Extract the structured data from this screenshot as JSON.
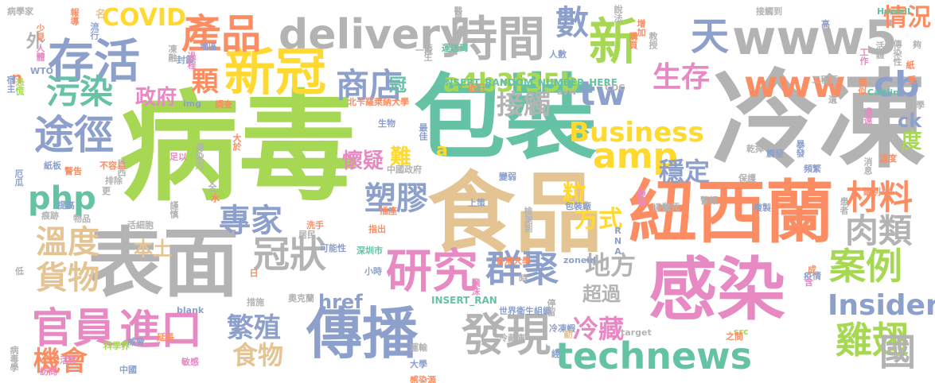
{
  "words": [
    {
      "text": "病毒",
      "color": "#a6d854"
    },
    {
      "text": "冷凍",
      "color": "#b3b3b3"
    },
    {
      "text": "包裝",
      "color": "#66c2a5"
    },
    {
      "text": "食品",
      "color": "#e5c494"
    },
    {
      "text": "表面",
      "color": "#b3b3b3"
    },
    {
      "text": "紐西蘭",
      "color": "#fc8d62"
    },
    {
      "text": "感染",
      "color": "#e78ac3"
    },
    {
      "text": "傳播",
      "color": "#8da0cb"
    },
    {
      "text": "新冠",
      "color": "#ffd92f"
    },
    {
      "text": "時間",
      "color": "#b3b3b3"
    },
    {
      "text": "存活",
      "color": "#8da0cb"
    },
    {
      "text": "www5",
      "color": "#b3b3b3"
    },
    {
      "text": "delivery",
      "color": "#b3b3b3"
    },
    {
      "text": "technews",
      "color": "#66c2a5"
    },
    {
      "text": "研究",
      "color": "#e78ac3"
    },
    {
      "text": "發現",
      "color": "#b3b3b3"
    },
    {
      "text": "新",
      "color": "#a6d854"
    },
    {
      "text": "產品",
      "color": "#fc8d62"
    },
    {
      "text": "進口",
      "color": "#e78ac3"
    },
    {
      "text": "官員",
      "color": "#e78ac3"
    },
    {
      "text": "商店",
      "color": "#8da0cb"
    },
    {
      "text": "www",
      "color": "#fc8d62"
    },
    {
      "text": "雞翅",
      "color": "#a6d854"
    },
    {
      "text": "冠狀",
      "color": "#b3b3b3"
    },
    {
      "text": "群聚",
      "color": "#8da0cb"
    },
    {
      "text": "案例",
      "color": "#a6d854"
    },
    {
      "text": "amp",
      "color": "#ffd92f"
    },
    {
      "text": "數",
      "color": "#8da0cb"
    },
    {
      "text": "天",
      "color": "#8da0cb"
    },
    {
      "text": "國",
      "color": "#b3b3b3"
    },
    {
      "text": "途徑",
      "color": "#8da0cb"
    },
    {
      "text": "污染",
      "color": "#66c2a5"
    },
    {
      "text": "php",
      "color": "#66c2a5"
    },
    {
      "text": "溫度",
      "color": "#e5c494"
    },
    {
      "text": "貨物",
      "color": "#e5c494"
    },
    {
      "text": "材料",
      "color": "#fc8d62"
    },
    {
      "text": "肉類",
      "color": "#b3b3b3"
    },
    {
      "text": "Insider",
      "color": "#8da0cb"
    },
    {
      "text": "專家",
      "color": "#8da0cb"
    },
    {
      "text": "塑膠",
      "color": "#8da0cb"
    },
    {
      "text": "tw",
      "color": "#8da0cb"
    },
    {
      "text": "cb",
      "color": "#8da0cb"
    },
    {
      "text": "生存",
      "color": "#e78ac3"
    },
    {
      "text": "Business",
      "color": "#ffd92f"
    },
    {
      "text": "接觸",
      "color": "#b3b3b3"
    },
    {
      "text": "穩定",
      "color": "#8da0cb"
    },
    {
      "text": "繁殖",
      "color": "#8da0cb"
    },
    {
      "text": "冷藏",
      "color": "#e78ac3"
    },
    {
      "text": "機會",
      "color": "#fc8d62"
    },
    {
      "text": "食物",
      "color": "#e5c494"
    },
    {
      "text": "方式",
      "color": "#ffd92f"
    },
    {
      "text": "地方",
      "color": "#b3b3b3"
    },
    {
      "text": "a4b3f35b",
      "color": "#a6d854"
    },
    {
      "text": "COVID",
      "color": "#ffd92f"
    },
    {
      "text": "情況",
      "color": "#fc8d62"
    },
    {
      "text": "政府",
      "color": "#e78ac3"
    },
    {
      "text": "懷疑",
      "color": "#e78ac3"
    },
    {
      "text": "本土",
      "color": "#e5c494"
    },
    {
      "text": "href",
      "color": "#8da0cb"
    },
    {
      "text": "超過",
      "color": "#b3b3b3"
    },
    {
      "text": "顆",
      "color": "#fc8d62"
    },
    {
      "text": "粒",
      "color": "#ffd92f"
    },
    {
      "text": "難",
      "color": "#ffd92f"
    },
    {
      "text": "冠",
      "color": "#66c2a5"
    },
    {
      "text": "外",
      "color": "#b3b3b3"
    },
    {
      "text": "ck",
      "color": "#8da0cb"
    },
    {
      "text": "度",
      "color": "#a6d854"
    },
    {
      "text": "n",
      "color": "#fc8d62"
    },
    {
      "text": "a",
      "color": "#ffd92f"
    },
    {
      "text": "INSERT_RANDOM_NUMBER_HERE",
      "color": "#66c2a5"
    },
    {
      "text": "INSERT_RAN",
      "color": "#66c2a5"
    },
    {
      "text": "北卡羅萊納大學",
      "color": "#fc8d62"
    },
    {
      "text": "香港大學",
      "color": "#fc8d62"
    },
    {
      "text": "深圳市",
      "color": "#66c2a5"
    },
    {
      "text": "世界衛生組織",
      "color": "#8da0cb"
    },
    {
      "text": "中國政府",
      "color": "#b3b3b3"
    },
    {
      "text": "奧克蘭",
      "color": "#b3b3b3"
    },
    {
      "text": "Howell",
      "color": "#66c2a5"
    },
    {
      "text": "Caitlin",
      "color": "#66c2a5"
    },
    {
      "text": "CDC",
      "color": "#b3b3b3"
    },
    {
      "text": "zoneid",
      "color": "#8da0cb"
    },
    {
      "text": "blank",
      "color": "#8da0cb"
    },
    {
      "text": "target",
      "color": "#b3b3b3"
    },
    {
      "text": "src",
      "color": "#a6d854"
    },
    {
      "text": "avw",
      "color": "#b3b3b3"
    },
    {
      "text": "WTO",
      "color": "#8da0cb"
    },
    {
      "text": "RNA",
      "color": "#8da0cb"
    },
    {
      "text": "img",
      "color": "#8da0cb"
    },
    {
      "text": "病學家",
      "color": "#b3b3b3"
    },
    {
      "text": "報導",
      "color": "#fc8d62"
    },
    {
      "text": "名",
      "color": "#e5c494"
    },
    {
      "text": "少見",
      "color": "#fc8d62"
    },
    {
      "text": "流行",
      "color": "#8da0cb"
    },
    {
      "text": "人體",
      "color": "#e78ac3"
    },
    {
      "text": "恐慌",
      "color": "#a6d854"
    },
    {
      "text": "宿主",
      "color": "#8da0cb"
    },
    {
      "text": "凍融",
      "color": "#b3b3b3"
    },
    {
      "text": "封鎖",
      "color": "#8da0cb"
    },
    {
      "text": "過程",
      "color": "#e78ac3"
    },
    {
      "text": "地區",
      "color": "#8da0cb"
    },
    {
      "text": "衛生",
      "color": "#b3b3b3"
    },
    {
      "text": "一段",
      "color": "#b3b3b3"
    },
    {
      "text": "運送到",
      "color": "#66c2a5"
    },
    {
      "text": "調查",
      "color": "#fc8d62"
    },
    {
      "text": "生物",
      "color": "#8da0cb"
    },
    {
      "text": "最佳",
      "color": "#8da0cb"
    },
    {
      "text": "近日",
      "color": "#fc8d62"
    },
    {
      "text": "醫學",
      "color": "#b3b3b3"
    },
    {
      "text": "說法",
      "color": "#b3b3b3"
    },
    {
      "text": "增加",
      "color": "#fc8d62"
    },
    {
      "text": "購買",
      "color": "#fc8d62"
    },
    {
      "text": "教授",
      "color": "#b3b3b3"
    },
    {
      "text": "人數",
      "color": "#8da0cb"
    },
    {
      "text": "接觸到",
      "color": "#b3b3b3"
    },
    {
      "text": "工作",
      "color": "#e78ac3"
    },
    {
      "text": "類似",
      "color": "#fc8d62"
    },
    {
      "text": "活體",
      "color": "#b3b3b3"
    },
    {
      "text": "傳染性",
      "color": "#b3b3b3"
    },
    {
      "text": "紙",
      "color": "#fc8d62"
    },
    {
      "text": "受",
      "color": "#fc8d62"
    },
    {
      "text": "工程師",
      "color": "#b3b3b3"
    },
    {
      "text": "遺",
      "color": "#b3b3b3"
    },
    {
      "text": "化學",
      "color": "#b3b3b3"
    },
    {
      "text": "遠遠",
      "color": "#e78ac3"
    },
    {
      "text": "大於",
      "color": "#fc8d62"
    },
    {
      "text": "巴西",
      "color": "#b3b3b3"
    },
    {
      "text": "足以",
      "color": "#e78ac3"
    },
    {
      "text": "傳染力",
      "color": "#b3b3b3"
    },
    {
      "text": "厄瓜",
      "color": "#8da0cb"
    },
    {
      "text": "紙板",
      "color": "#8da0cb"
    },
    {
      "text": "警告",
      "color": "#fc8d62"
    },
    {
      "text": "不容易",
      "color": "#fc8d62"
    },
    {
      "text": "排除",
      "color": "#b3b3b3"
    },
    {
      "text": "提高",
      "color": "#8da0cb"
    },
    {
      "text": "痕跡",
      "color": "#b3b3b3"
    },
    {
      "text": "物品",
      "color": "#b3b3b3"
    },
    {
      "text": "活細胞",
      "color": "#b3b3b3"
    },
    {
      "text": "居民",
      "color": "#b3b3b3"
    },
    {
      "text": "洗手",
      "color": "#fc8d62"
    },
    {
      "text": "可能性",
      "color": "#8da0cb"
    },
    {
      "text": "指出",
      "color": "#fc8d62"
    },
    {
      "text": "插座",
      "color": "#fc8d62"
    },
    {
      "text": "上策",
      "color": "#8da0cb"
    },
    {
      "text": "變弱",
      "color": "#8da0cb"
    },
    {
      "text": "檢測到",
      "color": "#b3b3b3"
    },
    {
      "text": "包裝廠",
      "color": "#8da0cb"
    },
    {
      "text": "謹慎",
      "color": "#b3b3b3"
    },
    {
      "text": "乾掉",
      "color": "#b3b3b3"
    },
    {
      "text": "觸發",
      "color": "#8da0cb"
    },
    {
      "text": "頻繁",
      "color": "#8da0cb"
    },
    {
      "text": "消息",
      "color": "#b3b3b3"
    },
    {
      "text": "溫度",
      "color": "#fc8d62"
    },
    {
      "text": "級別",
      "color": "#fc8d62"
    },
    {
      "text": "患者",
      "color": "#b3b3b3"
    },
    {
      "text": "複製",
      "color": "#8da0cb"
    },
    {
      "text": "警報",
      "color": "#b3b3b3"
    },
    {
      "text": "殺死",
      "color": "#b3b3b3"
    },
    {
      "text": "變得",
      "color": "#e78ac3"
    },
    {
      "text": "保護",
      "color": "#b3b3b3"
    },
    {
      "text": "暴發",
      "color": "#8da0cb"
    },
    {
      "text": "小時",
      "color": "#8da0cb"
    },
    {
      "text": "停留",
      "color": "#b3b3b3"
    },
    {
      "text": "疫情",
      "color": "#8da0cb"
    },
    {
      "text": "之間",
      "color": "#fc8d62"
    },
    {
      "text": "冷凍蝦",
      "color": "#8da0cb"
    },
    {
      "text": "冷藏庫",
      "color": "#b3b3b3"
    },
    {
      "text": "運輸",
      "color": "#b3b3b3"
    },
    {
      "text": "大學",
      "color": "#8da0cb"
    },
    {
      "text": "感染源",
      "color": "#fc8d62"
    },
    {
      "text": "飛沫",
      "color": "#e78ac3"
    },
    {
      "text": "科學界",
      "color": "#a6d854"
    },
    {
      "text": "病毒學",
      "color": "#b3b3b3"
    },
    {
      "text": "威脅",
      "color": "#8da0cb"
    },
    {
      "text": "延長",
      "color": "#fc8d62"
    },
    {
      "text": "措施",
      "color": "#b3b3b3"
    },
    {
      "text": "中國",
      "color": "#8da0cb"
    },
    {
      "text": "活性",
      "color": "#e78ac3"
    },
    {
      "text": "訪問",
      "color": "#e78ac3"
    },
    {
      "text": "敏感",
      "color": "#e78ac3"
    },
    {
      "text": "謹慎",
      "color": "#b3b3b3"
    },
    {
      "text": "全",
      "color": "#b3b3b3"
    },
    {
      "text": "水",
      "color": "#fc8d62"
    },
    {
      "text": "低",
      "color": "#b3b3b3"
    },
    {
      "text": "更",
      "color": "#b3b3b3"
    },
    {
      "text": "日",
      "color": "#fc8d62"
    },
    {
      "text": "時",
      "color": "#b3b3b3"
    },
    {
      "text": "含",
      "color": "#e78ac3"
    },
    {
      "text": "成",
      "color": "#fc8d62"
    },
    {
      "text": "高",
      "color": "#8da0cb"
    },
    {
      "text": "夠",
      "color": "#b3b3b3"
    },
    {
      "text": "勤",
      "color": "#e5c494"
    },
    {
      "text": "經",
      "color": "#8da0cb"
    }
  ]
}
